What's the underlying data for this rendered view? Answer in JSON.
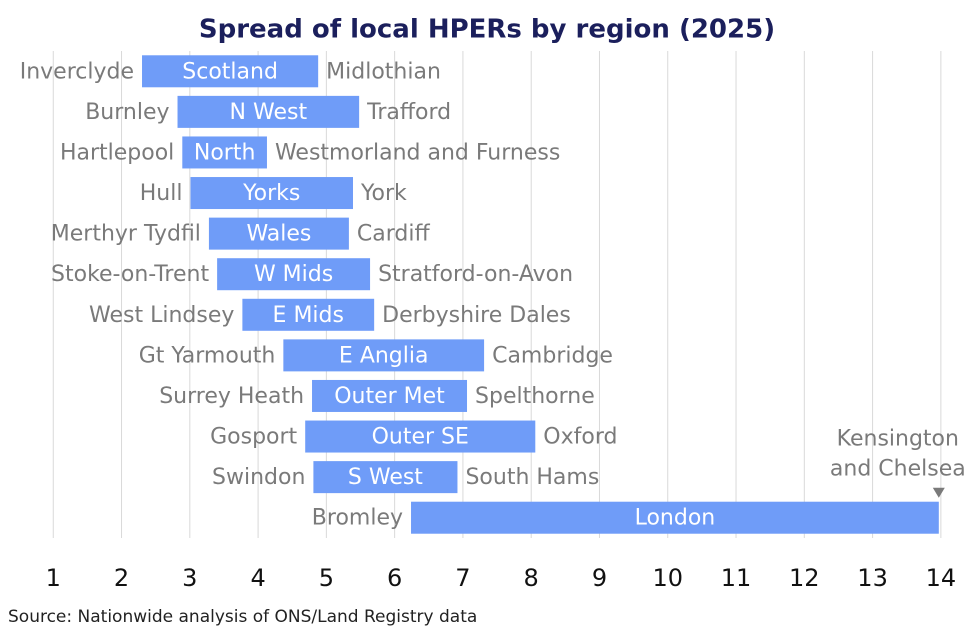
{
  "chart_data": {
    "type": "floating_bar",
    "title": "Spread of local HPERs by region (2025)",
    "categories": [
      "Scotland",
      "N West",
      "North",
      "Yorks",
      "Wales",
      "W Mids",
      "E Mids",
      "E Anglia",
      "Outer Met",
      "Outer SE",
      "S West",
      "London"
    ],
    "low_labels": [
      "Inverclyde",
      "Burnley",
      "Hartlepool",
      "Hull",
      "Merthyr Tydfil",
      "Stoke-on-Trent",
      "West Lindsey",
      "Gt Yarmouth",
      "Surrey Heath",
      "Gosport",
      "Swindon",
      "Bromley"
    ],
    "high_labels": [
      "Midlothian",
      "Trafford",
      "Westmorland and Furness",
      "York",
      "Cardiff",
      "Stratford-on-Avon",
      "Derbyshire Dales",
      "Cambridge",
      "Spelthorne",
      "Oxford",
      "South Hams",
      null
    ],
    "low": [
      2.3,
      2.82,
      2.89,
      3.01,
      3.28,
      3.4,
      3.77,
      4.37,
      4.79,
      4.69,
      4.81,
      6.24
    ],
    "high": [
      4.88,
      5.48,
      4.13,
      5.39,
      5.33,
      5.64,
      5.7,
      7.31,
      7.06,
      8.06,
      6.92,
      13.97
    ],
    "color": "#6f9cf8",
    "annotation": [
      "Kensington",
      "and Chelsea"
    ],
    "xlim": [
      0.22,
      14.5
    ],
    "xticks": [
      1,
      2,
      3,
      4,
      5,
      6,
      7,
      8,
      9,
      10,
      11,
      12,
      13,
      14
    ],
    "grid": true,
    "source": "Source: Nationwide analysis of ONS/Land Registry data"
  }
}
